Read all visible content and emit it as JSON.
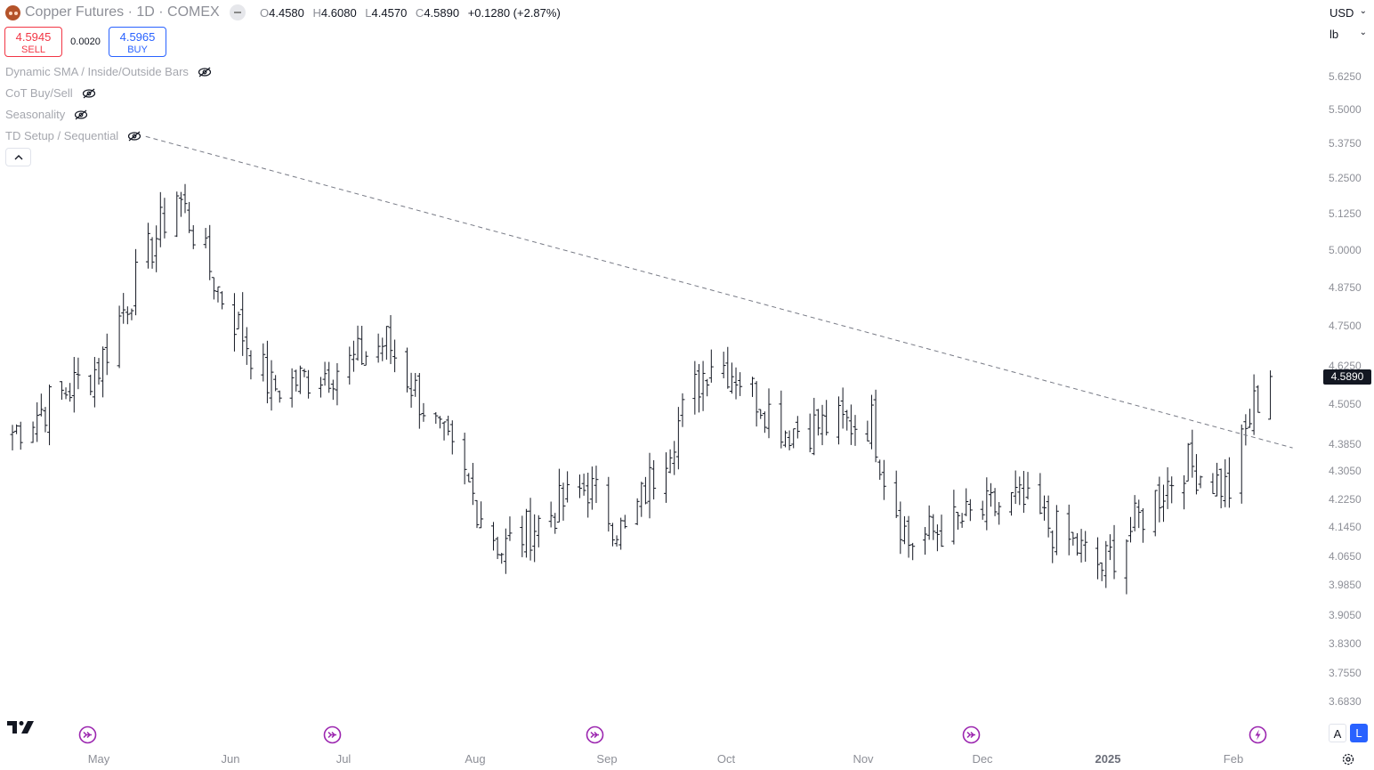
{
  "header": {
    "symbol": "Copper Futures · 1D · COMEX",
    "ohlc": [
      {
        "key": "O",
        "value": "4.4580"
      },
      {
        "key": "H",
        "value": "4.6080"
      },
      {
        "key": "L",
        "value": "4.4570"
      },
      {
        "key": "C",
        "value": "4.5890"
      }
    ],
    "change": "+0.1280 (+2.87%)"
  },
  "trade": {
    "sell_price": "4.5945",
    "sell_label": "SELL",
    "spread": "0.0020",
    "buy_price": "4.5965",
    "buy_label": "BUY"
  },
  "indicators": [
    {
      "label": "Dynamic SMA / Inside/Outside Bars"
    },
    {
      "label": "CoT Buy/Sell"
    },
    {
      "label": "Seasonality"
    },
    {
      "label": "TD Setup / Sequential"
    }
  ],
  "price_scale": {
    "currency": "USD",
    "unit": "lb",
    "labels": [
      "5.6250",
      "5.5000",
      "5.3750",
      "5.2500",
      "5.1250",
      "5.0000",
      "4.8750",
      "4.7500",
      "4.6250",
      "4.5050",
      "4.3850",
      "4.3050",
      "4.2250",
      "4.1450",
      "4.0650",
      "3.9850",
      "3.9050",
      "3.8300",
      "3.7550",
      "3.6830"
    ],
    "last_price": "4.5890",
    "last_price_color": "#131722"
  },
  "time_scale": {
    "labels": [
      {
        "text": "May",
        "bold": false
      },
      {
        "text": "Jun",
        "bold": false
      },
      {
        "text": "Jul",
        "bold": false
      },
      {
        "text": "Aug",
        "bold": false
      },
      {
        "text": "Sep",
        "bold": false
      },
      {
        "text": "Oct",
        "bold": false
      },
      {
        "text": "Nov",
        "bold": false
      },
      {
        "text": "Dec",
        "bold": false
      },
      {
        "text": "2025",
        "bold": true
      },
      {
        "text": "Feb",
        "bold": false
      }
    ]
  },
  "scale_buttons": {
    "auto": "A",
    "log": "L"
  },
  "colors": {
    "sell": "#f23645",
    "buy": "#2962ff",
    "event": "#9c27b0",
    "bars": "#131722",
    "trendline": "#787b86"
  },
  "chart_data": {
    "type": "ohlc-bar",
    "symbol": "Copper Futures",
    "interval": "1D",
    "exchange": "COMEX",
    "log_scale": true,
    "trendline": {
      "from": {
        "date": "2024-05-20",
        "price": 5.37
      },
      "to": {
        "date": "2025-02-10",
        "price": 4.39
      },
      "style": "dashed"
    },
    "anchors": [
      {
        "date": "2024-04-10",
        "close": 4.42
      },
      {
        "date": "2024-05-01",
        "close": 4.62
      },
      {
        "date": "2024-05-20",
        "close": 5.2
      },
      {
        "date": "2024-05-30",
        "close": 4.87
      },
      {
        "date": "2024-06-12",
        "close": 4.55
      },
      {
        "date": "2024-07-01",
        "close": 4.63
      },
      {
        "date": "2024-07-10",
        "close": 4.7
      },
      {
        "date": "2024-08-01",
        "close": 4.21
      },
      {
        "date": "2024-08-07",
        "close": 4.08
      },
      {
        "date": "2024-08-28",
        "close": 4.26
      },
      {
        "date": "2024-09-06",
        "close": 4.12
      },
      {
        "date": "2024-09-27",
        "close": 4.65
      },
      {
        "date": "2024-10-03",
        "close": 4.6
      },
      {
        "date": "2024-10-15",
        "close": 4.43
      },
      {
        "date": "2024-11-05",
        "close": 4.45
      },
      {
        "date": "2024-11-08",
        "close": 4.3
      },
      {
        "date": "2024-11-14",
        "close": 4.1
      },
      {
        "date": "2024-12-10",
        "close": 4.22
      },
      {
        "date": "2024-12-31",
        "close": 4.03
      },
      {
        "date": "2025-01-20",
        "close": 4.33
      },
      {
        "date": "2025-01-31",
        "close": 4.25
      },
      {
        "date": "2025-02-06",
        "close": 4.5
      },
      {
        "date": "2025-02-10",
        "close": 4.589
      }
    ]
  }
}
